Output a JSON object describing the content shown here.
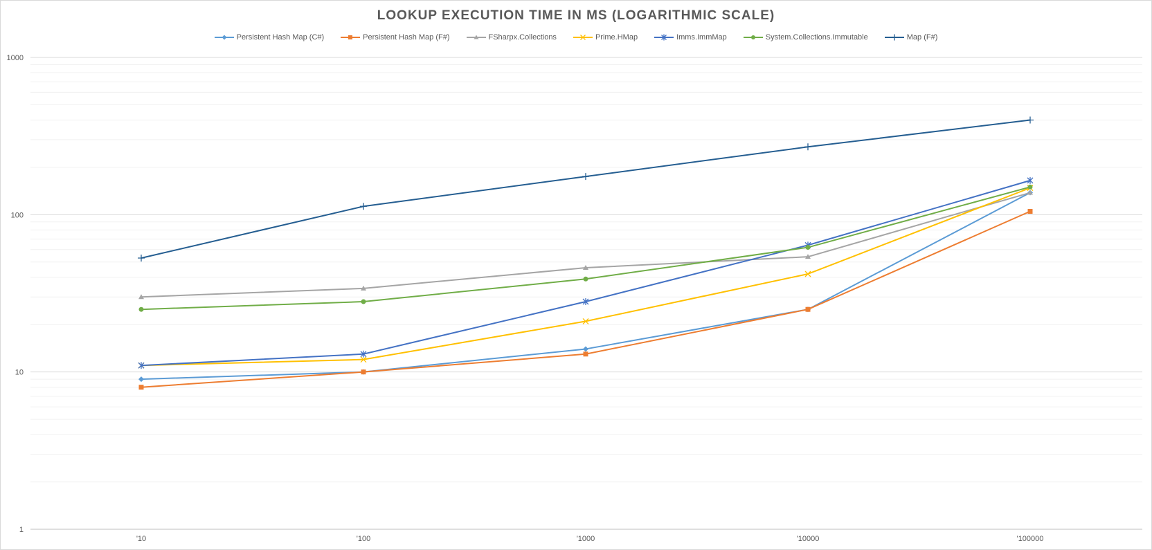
{
  "chart_data": {
    "type": "line",
    "title": "LOOKUP EXECUTION TIME IN MS (LOGARITHMIC SCALE)",
    "xlabel": "",
    "ylabel": "",
    "y_scale": "log",
    "ylim": [
      1,
      1000
    ],
    "y_ticks": [
      "1",
      "10",
      "100",
      "1000"
    ],
    "y_tick_values": [
      1,
      10,
      100,
      1000
    ],
    "grid": true,
    "minor_grid": true,
    "legend_position": "top",
    "categories": [
      "'10",
      "'100",
      "'1000",
      "'10000",
      "'100000"
    ],
    "series": [
      {
        "name": "Persistent Hash Map (C#)",
        "color": "#5b9bd5",
        "marker": "diamond",
        "values": [
          9,
          10,
          14,
          25,
          138
        ]
      },
      {
        "name": "Persistent Hash Map (F#)",
        "color": "#ed7d31",
        "marker": "square",
        "values": [
          8,
          10,
          13,
          25,
          105
        ]
      },
      {
        "name": "FSharpx.Collections",
        "color": "#a5a5a5",
        "marker": "triangle",
        "values": [
          30,
          34,
          46,
          54,
          138
        ]
      },
      {
        "name": "Prime.HMap",
        "color": "#ffc000",
        "marker": "x",
        "values": [
          11,
          12,
          21,
          42,
          148
        ]
      },
      {
        "name": "Imms.ImmMap",
        "color": "#4472c4",
        "marker": "star",
        "values": [
          11,
          13,
          28,
          64,
          165
        ]
      },
      {
        "name": "System.Collections.Immutable",
        "color": "#70ad47",
        "marker": "circle",
        "values": [
          25,
          28,
          39,
          62,
          150
        ]
      },
      {
        "name": "Map (F#)",
        "color": "#255e91",
        "marker": "plus",
        "values": [
          53,
          113,
          175,
          270,
          400
        ]
      }
    ]
  }
}
